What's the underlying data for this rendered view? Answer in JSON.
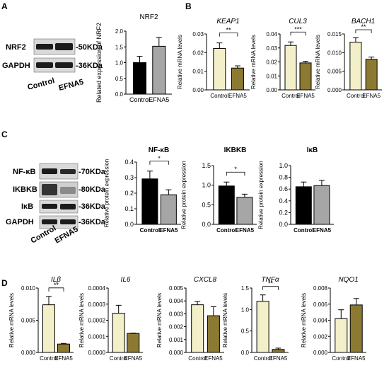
{
  "colors": {
    "control_light": "#f3efc8",
    "efna5_olive": "#8c7a33",
    "control_black": "#000000",
    "efna5_grey": "#a6a6a6",
    "blot_band": "#1c1c1c",
    "blot_bg": "#d9d9d9"
  },
  "blots": [
    {
      "panel_label": "A",
      "rows": [
        {
          "label": "NRF2",
          "size": "-50KDa"
        },
        {
          "label": "GAPDH",
          "size": "-36KDa"
        }
      ],
      "lanes": [
        "Control",
        "EFNA5"
      ]
    },
    {
      "panel_label": "C",
      "rows": [
        {
          "label": "NF-κB",
          "size": "-70KDa"
        },
        {
          "label": "IKBKB",
          "size": "-80KDa"
        },
        {
          "label": "IκB",
          "size": "-36KDa"
        },
        {
          "label": "GAPDH",
          "size": "-36KDa"
        }
      ],
      "lanes": [
        "Control",
        "EFNA5"
      ]
    }
  ],
  "panel_labels": {
    "B": "B",
    "D": "D"
  },
  "chart_data": [
    {
      "panel": "A",
      "type": "bar",
      "title": "NRF2",
      "title_style": "normal",
      "ylabel": "Related expression of NRF2",
      "ylim": [
        0,
        2.0
      ],
      "yticks": [
        "0.0",
        "0.5",
        "1.0",
        "1.5",
        "2.0"
      ],
      "categories": [
        "Control",
        "EFNA5"
      ],
      "values": [
        1.0,
        1.52
      ],
      "errors": [
        0.2,
        0.28
      ],
      "colors": [
        "#000000",
        "#a6a6a6"
      ],
      "significance": ""
    },
    {
      "panel": "B",
      "type": "bar",
      "title": "KEAP1",
      "title_style": "italic",
      "ylabel": "Relative mRNA levels",
      "ylim": [
        0,
        0.03
      ],
      "yticks": [
        "0.00",
        "0.01",
        "0.02",
        "0.03"
      ],
      "categories": [
        "Control",
        "EFNA5"
      ],
      "values": [
        0.0222,
        0.0117
      ],
      "errors": [
        0.003,
        0.0012
      ],
      "colors": [
        "#f3efc8",
        "#8c7a33"
      ],
      "significance": "**"
    },
    {
      "panel": "B",
      "type": "bar",
      "title": "CUL3",
      "title_style": "italic",
      "ylabel": "Relative mRNA levels",
      "ylim": [
        0,
        0.04
      ],
      "yticks": [
        "0.00",
        "0.01",
        "0.02",
        "0.03",
        "0.04"
      ],
      "categories": [
        "Control",
        "EFNA5"
      ],
      "values": [
        0.0318,
        0.0193
      ],
      "errors": [
        0.0025,
        0.0012
      ],
      "colors": [
        "#f3efc8",
        "#8c7a33"
      ],
      "significance": "***"
    },
    {
      "panel": "B",
      "type": "bar",
      "title": "BACH1",
      "title_style": "italic",
      "ylabel": "Relative mRNA levels",
      "ylim": [
        0,
        0.015
      ],
      "yticks": [
        "0.000",
        "0.005",
        "0.010",
        "0.015"
      ],
      "categories": [
        "Control",
        "EFNA5"
      ],
      "values": [
        0.0128,
        0.0082
      ],
      "errors": [
        0.0012,
        0.0006
      ],
      "colors": [
        "#f3efc8",
        "#8c7a33"
      ],
      "significance": "**"
    },
    {
      "panel": "C",
      "type": "bar",
      "title": "NF-κB",
      "title_style": "bold",
      "ylabel": "Relative protein expression",
      "ylim": [
        0,
        0.4
      ],
      "yticks": [
        "0.0",
        "0.1",
        "0.2",
        "0.3",
        "0.4"
      ],
      "categories": [
        "Control",
        "EFNA5"
      ],
      "values": [
        0.292,
        0.19
      ],
      "errors": [
        0.05,
        0.032
      ],
      "colors": [
        "#000000",
        "#a6a6a6"
      ],
      "significance": "*"
    },
    {
      "panel": "C",
      "type": "bar",
      "title": "IKBKB",
      "title_style": "bold",
      "ylabel": "Relative protein expression",
      "ylim": [
        0,
        1.5
      ],
      "yticks": [
        "0.0",
        "0.5",
        "1.0",
        "1.5"
      ],
      "categories": [
        "Control",
        "EFNA5"
      ],
      "values": [
        0.98,
        0.69
      ],
      "errors": [
        0.1,
        0.08
      ],
      "colors": [
        "#000000",
        "#a6a6a6"
      ],
      "significance": "*"
    },
    {
      "panel": "C",
      "type": "bar",
      "title": "IκB",
      "title_style": "bold",
      "ylabel": "Relative protein expression",
      "ylim": [
        0,
        1.0
      ],
      "yticks": [
        "0.0",
        "0.2",
        "0.4",
        "0.6",
        "0.8",
        "1.0"
      ],
      "categories": [
        "Control",
        "EFNA5"
      ],
      "values": [
        0.64,
        0.66
      ],
      "errors": [
        0.08,
        0.09
      ],
      "colors": [
        "#000000",
        "#a6a6a6"
      ],
      "significance": ""
    },
    {
      "panel": "D",
      "type": "bar",
      "title": "ILβ",
      "title_style": "italic",
      "ylabel": "Relative mRNA levels",
      "ylim": [
        0,
        0.01
      ],
      "yticks": [
        "0.000",
        "0.005",
        "0.010"
      ],
      "categories": [
        "Control",
        "EFNA5"
      ],
      "values": [
        0.0074,
        0.0013
      ],
      "errors": [
        0.0013,
        0.0001
      ],
      "colors": [
        "#f3efc8",
        "#8c7a33"
      ],
      "significance": "**"
    },
    {
      "panel": "D",
      "type": "bar",
      "title": "IL6",
      "title_style": "italic",
      "ylabel": "Relative mRNA levels",
      "ylim": [
        0,
        0.0004
      ],
      "yticks": [
        "0.0000",
        "0.0001",
        "0.0002",
        "0.0003",
        "0.0004"
      ],
      "categories": [
        "Control",
        "EFNA5"
      ],
      "values": [
        0.000243,
        0.000118
      ],
      "errors": [
        5e-05,
        2e-06
      ],
      "colors": [
        "#f3efc8",
        "#8c7a33"
      ],
      "significance": ""
    },
    {
      "panel": "D",
      "type": "bar",
      "title": "CXCL8",
      "title_style": "italic",
      "ylabel": "Relative mRNA levels",
      "ylim": [
        0,
        0.005
      ],
      "yticks": [
        "0.000",
        "0.001",
        "0.002",
        "0.003",
        "0.004",
        "0.005"
      ],
      "categories": [
        "Control",
        "EFNA5"
      ],
      "values": [
        0.0037,
        0.00285
      ],
      "errors": [
        0.00025,
        0.0007
      ],
      "colors": [
        "#f3efc8",
        "#8c7a33"
      ],
      "significance": ""
    },
    {
      "panel": "D",
      "type": "bar",
      "title": "TNFα",
      "title_style": "italic",
      "ylabel": "Relative mRNA levels",
      "ylim": [
        0,
        1.5
      ],
      "yticks": [
        "0.0",
        "0.5",
        "1.0",
        "1.5"
      ],
      "categories": [
        "Control",
        "EFNA5"
      ],
      "values": [
        1.19,
        0.07
      ],
      "errors": [
        0.15,
        0.03
      ],
      "colors": [
        "#f3efc8",
        "#8c7a33"
      ],
      "significance": "**"
    },
    {
      "panel": "D",
      "type": "bar",
      "title": "NQO1",
      "title_style": "italic",
      "ylabel": "Relative mRNA levels",
      "ylim": [
        0,
        0.008
      ],
      "yticks": [
        "0.000",
        "0.002",
        "0.004",
        "0.006",
        "0.008"
      ],
      "categories": [
        "Control",
        "EFNA5"
      ],
      "values": [
        0.0042,
        0.0059
      ],
      "errors": [
        0.0011,
        0.0008
      ],
      "colors": [
        "#f3efc8",
        "#8c7a33"
      ],
      "significance": ""
    }
  ]
}
